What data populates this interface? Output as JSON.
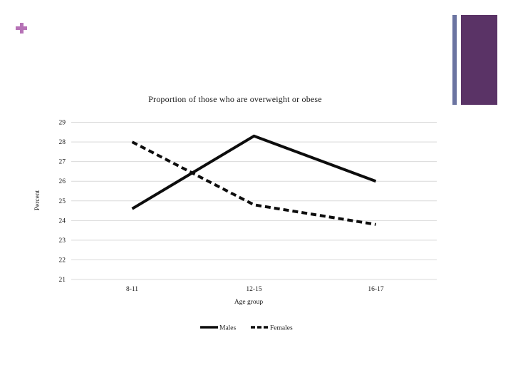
{
  "slide": {
    "decorations": {
      "plus_icon_color": "#b672b6",
      "side_bar_thin_color": "#6b74a1",
      "side_bar_wide_color": "#5a3366"
    }
  },
  "chart_data": {
    "type": "line",
    "title": "Proportion of those who are overweight or obese",
    "categories": [
      "8-11",
      "12-15",
      "16-17"
    ],
    "series": [
      {
        "name": "Males",
        "style": "solid",
        "values": [
          24.6,
          28.3,
          26.0
        ]
      },
      {
        "name": "Females",
        "style": "dashed",
        "values": [
          28.0,
          24.8,
          23.8
        ]
      }
    ],
    "xlabel": "Age group",
    "ylabel": "Percent",
    "ylim": [
      21,
      29
    ],
    "yticks": [
      21,
      22,
      23,
      24,
      25,
      26,
      27,
      28,
      29
    ],
    "grid": true,
    "legend_position": "bottom",
    "line_color": "#0d0d0d",
    "gridline_color": "#d9d9d9"
  }
}
